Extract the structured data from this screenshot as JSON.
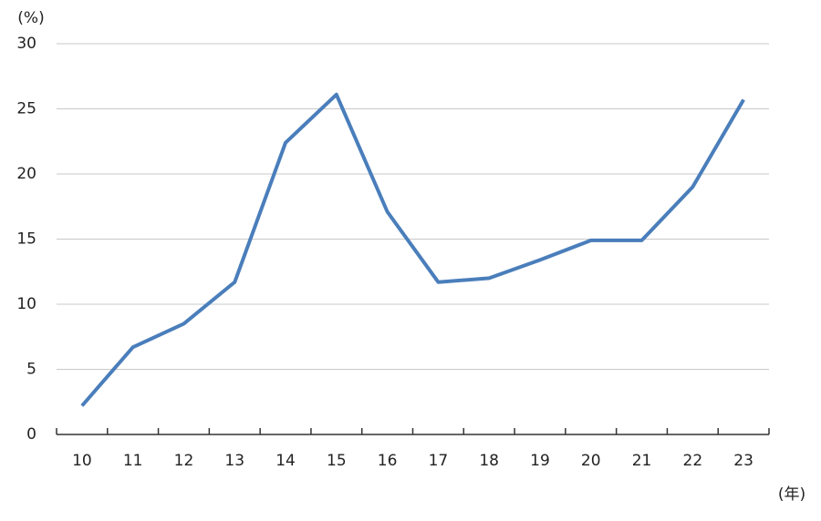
{
  "chart_data": {
    "type": "line",
    "y_label": "(%)",
    "x_label": "(年)",
    "categories": [
      "10",
      "11",
      "12",
      "13",
      "14",
      "15",
      "16",
      "17",
      "18",
      "19",
      "20",
      "21",
      "22",
      "23"
    ],
    "values": [
      2.2,
      6.7,
      8.5,
      11.7,
      22.4,
      26.1,
      17.1,
      11.7,
      12.0,
      13.4,
      14.9,
      14.9,
      19.0,
      25.7
    ],
    "color": "#4a7ebb",
    "ylim": [
      0,
      30
    ],
    "yticks": [
      0,
      5,
      10,
      15,
      20,
      25,
      30
    ],
    "grid": true
  }
}
